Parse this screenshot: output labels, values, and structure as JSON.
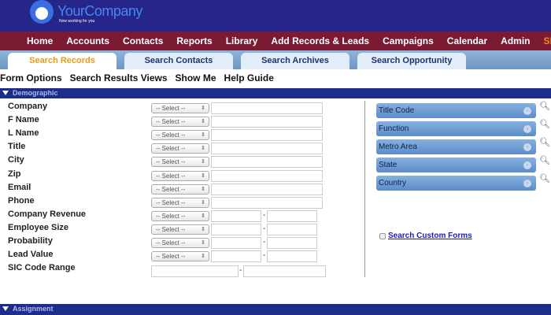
{
  "brand": {
    "name": "YourCompany",
    "tagline": "Now working for you"
  },
  "nav": [
    "Home",
    "Accounts",
    "Contacts",
    "Reports",
    "Library",
    "Add Records & Leads",
    "Campaigns",
    "Calendar",
    "Admin",
    "SEA"
  ],
  "tabs": [
    "Search Records",
    "Search Contacts",
    "Search Archives",
    "Search Opportunity"
  ],
  "options": [
    "Form Options",
    "Search Results Views",
    "Show Me",
    "Help Guide"
  ],
  "sections": {
    "demographic": "Demographic",
    "assignment": "Assignment"
  },
  "select_placeholder": "-- Select --",
  "fields": [
    "Company",
    "F Name",
    "L Name",
    "Title",
    "City",
    "Zip",
    "Email",
    "Phone",
    "Company Revenue",
    "Employee Size",
    "Probability",
    "Lead Value",
    "SIC Code Range"
  ],
  "lookups": [
    "Title Code",
    "Function",
    "Metro Area",
    "State",
    "Country"
  ],
  "custom_forms": "Search Custom Forms"
}
